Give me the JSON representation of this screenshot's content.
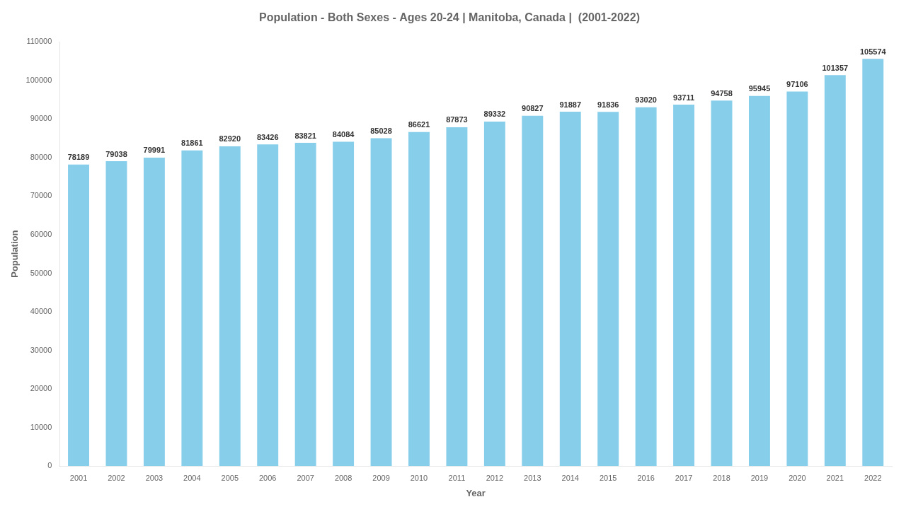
{
  "chart_data": {
    "type": "bar",
    "title": "Population - Both Sexes - Ages 20-24 | Manitoba, Canada |  (2001-2022)",
    "xlabel": "Year",
    "ylabel": "Population",
    "categories": [
      "2001",
      "2002",
      "2003",
      "2004",
      "2005",
      "2006",
      "2007",
      "2008",
      "2009",
      "2010",
      "2011",
      "2012",
      "2013",
      "2014",
      "2015",
      "2016",
      "2017",
      "2018",
      "2019",
      "2020",
      "2021",
      "2022"
    ],
    "values": [
      78189,
      79038,
      79991,
      81861,
      82920,
      83426,
      83821,
      84084,
      85028,
      86621,
      87873,
      89332,
      90827,
      91887,
      91836,
      93020,
      93711,
      94758,
      95945,
      97106,
      101357,
      105574
    ],
    "color": "#87CEEB",
    "ylim": [
      0,
      110000
    ],
    "yticks": [
      0,
      10000,
      20000,
      30000,
      40000,
      50000,
      60000,
      70000,
      80000,
      90000,
      100000,
      110000
    ],
    "grid": false,
    "data_labels": true
  }
}
